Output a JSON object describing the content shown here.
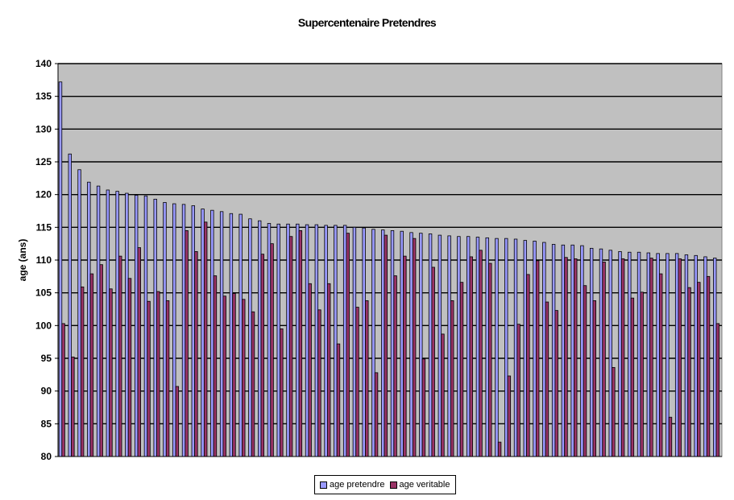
{
  "chart_data": {
    "type": "bar",
    "title": "Supercentenaire Pretendres",
    "xlabel": "",
    "ylabel": "age (ans)",
    "ylim": [
      80,
      140
    ],
    "yticks": [
      80,
      85,
      90,
      95,
      100,
      105,
      110,
      115,
      120,
      125,
      130,
      135,
      140
    ],
    "grid": true,
    "legend_position": "bottom",
    "plot_background": "#c0c0c0",
    "series": [
      {
        "name": "age pretendre",
        "color": "#9999ff",
        "values": [
          137.2,
          126.2,
          123.8,
          121.9,
          121.3,
          120.7,
          120.5,
          120.2,
          119.9,
          119.8,
          119.3,
          118.8,
          118.6,
          118.5,
          118.3,
          117.8,
          117.6,
          117.4,
          117.1,
          117.0,
          116.3,
          116.0,
          115.6,
          115.5,
          115.5,
          115.5,
          115.4,
          115.4,
          115.3,
          115.3,
          115.3,
          115.0,
          114.9,
          114.7,
          114.6,
          114.5,
          114.4,
          114.2,
          114.1,
          114.0,
          113.8,
          113.7,
          113.6,
          113.6,
          113.5,
          113.4,
          113.3,
          113.3,
          113.2,
          113.0,
          112.9,
          112.7,
          112.4,
          112.3,
          112.3,
          112.2,
          111.8,
          111.7,
          111.5,
          111.3,
          111.2,
          111.2,
          111.1,
          111.0,
          111.0,
          111.0,
          110.8,
          110.7,
          110.5,
          110.3
        ]
      },
      {
        "name": "age veritable",
        "color": "#993366",
        "values": [
          100.3,
          95.2,
          105.9,
          107.9,
          109.3,
          105.6,
          110.6,
          107.2,
          111.9,
          103.7,
          105.2,
          103.8,
          90.7,
          114.5,
          111.3,
          115.8,
          107.6,
          104.5,
          104.9,
          104.0,
          102.1,
          110.9,
          112.5,
          99.5,
          113.6,
          114.5,
          106.4,
          102.4,
          106.4,
          97.2,
          114.1,
          102.8,
          103.8,
          92.8,
          113.8,
          107.6,
          110.6,
          113.3,
          94.9,
          108.9,
          98.7,
          103.8,
          106.6,
          110.5,
          111.5,
          109.5,
          82.2,
          92.3,
          100.2,
          107.8,
          109.9,
          103.6,
          102.3,
          110.4,
          110.2,
          106.1,
          103.8,
          109.7,
          93.6,
          110.2,
          104.2,
          105.1,
          110.3,
          107.9,
          86.0,
          110.2,
          105.8,
          106.6,
          107.5,
          100.3
        ]
      }
    ]
  }
}
